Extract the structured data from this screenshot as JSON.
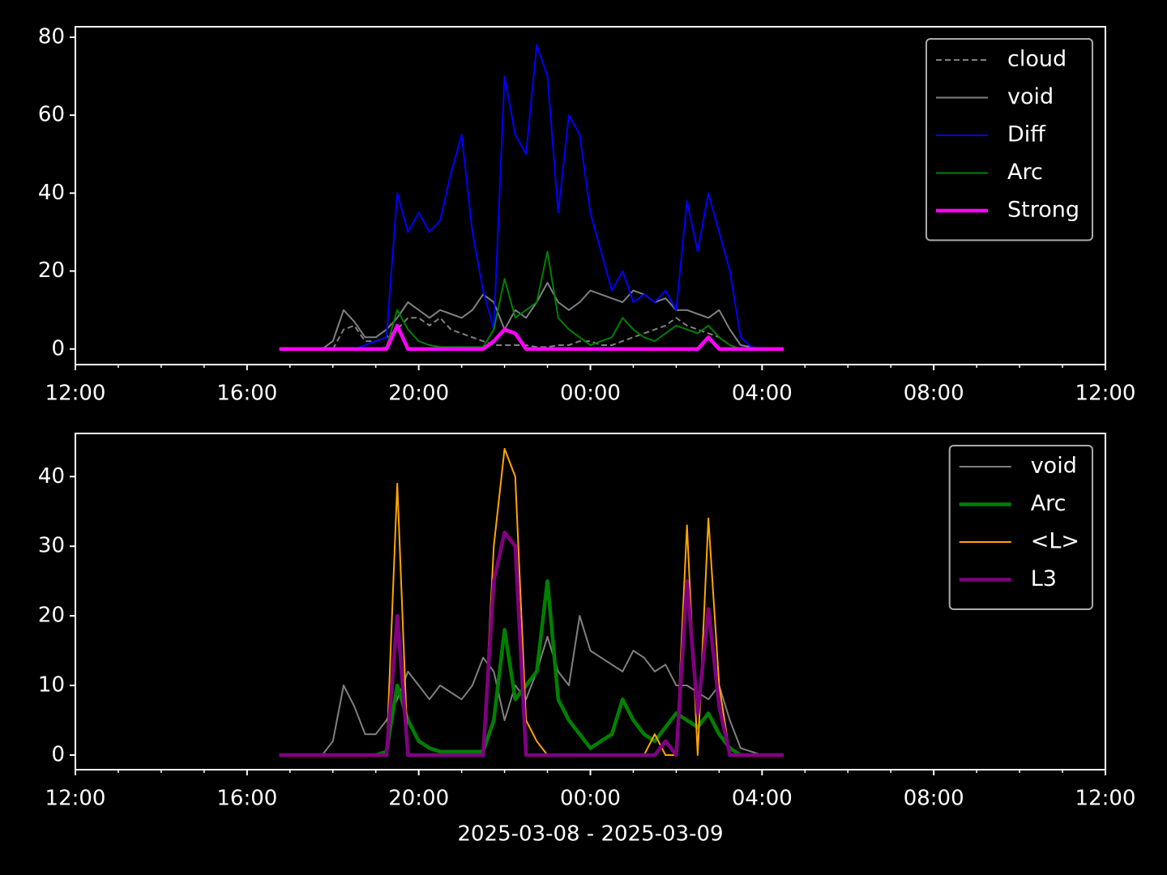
{
  "chart_data": [
    {
      "type": "line",
      "legend": "upper right",
      "xlim": [
        12,
        36
      ],
      "ylim": [
        -4,
        82.7
      ],
      "xticks": [
        {
          "value": 12,
          "label": "12:00"
        },
        {
          "value": 16,
          "label": "16:00"
        },
        {
          "value": 20,
          "label": "20:00"
        },
        {
          "value": 24,
          "label": "00:00"
        },
        {
          "value": 28,
          "label": "04:00"
        },
        {
          "value": 32,
          "label": "08:00"
        },
        {
          "value": 36,
          "label": "12:00"
        }
      ],
      "xminor_ticks": [
        13,
        14,
        15,
        17,
        18,
        19,
        21,
        22,
        23,
        25,
        26,
        27,
        29,
        30,
        31,
        33,
        34,
        35
      ],
      "yticks": [
        0,
        20,
        40,
        60,
        80
      ],
      "x": [
        16.75,
        17,
        17.25,
        17.5,
        17.75,
        18,
        18.25,
        18.5,
        18.75,
        19,
        19.25,
        19.5,
        19.75,
        20,
        20.25,
        20.5,
        20.75,
        21,
        21.25,
        21.5,
        21.75,
        22,
        22.25,
        22.5,
        22.75,
        23,
        23.25,
        23.5,
        23.75,
        24,
        24.25,
        24.5,
        24.75,
        25,
        25.25,
        25.5,
        25.75,
        26,
        26.25,
        26.5,
        26.75,
        27,
        27.25,
        27.5,
        27.75,
        28,
        28.25,
        28.5
      ],
      "series": [
        {
          "name": "cloud",
          "color": "#808080",
          "dash": true,
          "width": 2,
          "values": [
            0,
            0,
            0,
            0,
            0,
            0,
            5,
            6,
            2,
            2,
            3,
            5,
            8,
            8,
            6,
            8,
            5,
            4,
            3,
            2,
            1,
            1,
            1,
            1,
            0.5,
            0.5,
            1,
            1,
            2,
            2,
            1,
            1,
            2,
            3,
            4,
            5,
            6,
            8,
            6,
            5,
            4,
            3,
            1,
            0,
            0,
            0,
            0,
            0
          ]
        },
        {
          "name": "void",
          "color": "#808080",
          "width": 2,
          "values": [
            0,
            0,
            0,
            0,
            0,
            2,
            10,
            7,
            3,
            3,
            5,
            8,
            12,
            10,
            8,
            10,
            9,
            8,
            10,
            14,
            12,
            5,
            10,
            8,
            12,
            17,
            12,
            10,
            12,
            15,
            14,
            13,
            12,
            15,
            14,
            12,
            13,
            10,
            10,
            9,
            8,
            10,
            5,
            1,
            0.5,
            0,
            0,
            0
          ]
        },
        {
          "name": "Diff",
          "color": "#0000ff",
          "width": 2,
          "values": [
            0,
            0,
            0,
            0,
            0,
            0,
            0,
            0,
            1,
            2,
            3,
            40,
            30,
            35,
            30,
            33,
            45,
            55,
            30,
            15,
            5,
            70,
            55,
            50,
            78,
            70,
            35,
            60,
            55,
            35,
            25,
            15,
            20,
            12,
            14,
            12,
            15,
            10,
            38,
            25,
            40,
            30,
            20,
            3,
            0.5,
            0,
            0,
            0
          ]
        },
        {
          "name": "Arc",
          "color": "#008000",
          "width": 2,
          "values": [
            0,
            0,
            0,
            0,
            0,
            0,
            0,
            0,
            0,
            0,
            0.5,
            10,
            5,
            2,
            1,
            0.5,
            0.5,
            0.5,
            0.5,
            0.5,
            5,
            18,
            8,
            10,
            12,
            25,
            8,
            5,
            3,
            1,
            2,
            3,
            8,
            5,
            3,
            2,
            4,
            6,
            5,
            4,
            6,
            3,
            1,
            0,
            0,
            0,
            0,
            0
          ]
        },
        {
          "name": "Strong",
          "color": "#ff00ff",
          "width": 4.5,
          "values": [
            0,
            0,
            0,
            0,
            0,
            0,
            0,
            0,
            0,
            0,
            0,
            6,
            0,
            0,
            0,
            0,
            0,
            0,
            0,
            0,
            2,
            5,
            4,
            0,
            0,
            0,
            0,
            0,
            0,
            0,
            0,
            0,
            0,
            0,
            0,
            0,
            0,
            0,
            0,
            0,
            3,
            0,
            0,
            0,
            0,
            0,
            0,
            0
          ]
        }
      ]
    },
    {
      "type": "line",
      "legend": "upper right",
      "xlabel": "2025-03-08 - 2025-03-09",
      "xlim": [
        12,
        36
      ],
      "ylim": [
        -2.1,
        46.2
      ],
      "xticks": [
        {
          "value": 12,
          "label": "12:00"
        },
        {
          "value": 16,
          "label": "16:00"
        },
        {
          "value": 20,
          "label": "20:00"
        },
        {
          "value": 24,
          "label": "00:00"
        },
        {
          "value": 28,
          "label": "04:00"
        },
        {
          "value": 32,
          "label": "08:00"
        },
        {
          "value": 36,
          "label": "12:00"
        }
      ],
      "xminor_ticks": [
        13,
        14,
        15,
        17,
        18,
        19,
        21,
        22,
        23,
        25,
        26,
        27,
        29,
        30,
        31,
        33,
        34,
        35
      ],
      "yticks": [
        0,
        10,
        20,
        30,
        40
      ],
      "x": [
        16.75,
        17,
        17.25,
        17.5,
        17.75,
        18,
        18.25,
        18.5,
        18.75,
        19,
        19.25,
        19.5,
        19.75,
        20,
        20.25,
        20.5,
        20.75,
        21,
        21.25,
        21.5,
        21.75,
        22,
        22.25,
        22.5,
        22.75,
        23,
        23.25,
        23.5,
        23.75,
        24,
        24.25,
        24.5,
        24.75,
        25,
        25.25,
        25.5,
        25.75,
        26,
        26.25,
        26.5,
        26.75,
        27,
        27.25,
        27.5,
        27.75,
        28,
        28.25,
        28.5
      ],
      "series": [
        {
          "name": "void",
          "color": "#808080",
          "width": 2,
          "values": [
            0,
            0,
            0,
            0,
            0,
            2,
            10,
            7,
            3,
            3,
            5,
            8,
            12,
            10,
            8,
            10,
            9,
            8,
            10,
            14,
            12,
            5,
            10,
            8,
            12,
            17,
            12,
            10,
            20,
            15,
            14,
            13,
            12,
            15,
            14,
            12,
            13,
            10,
            10,
            9,
            8,
            10,
            5,
            1,
            0.5,
            0,
            0,
            0
          ]
        },
        {
          "name": "Arc",
          "color": "#008000",
          "width": 4.5,
          "values": [
            0,
            0,
            0,
            0,
            0,
            0,
            0,
            0,
            0,
            0,
            0.5,
            10,
            5,
            2,
            1,
            0.5,
            0.5,
            0.5,
            0.5,
            0.5,
            5,
            18,
            8,
            10,
            12,
            25,
            8,
            5,
            3,
            1,
            2,
            3,
            8,
            5,
            3,
            2,
            4,
            6,
            5,
            4,
            6,
            3,
            1,
            0,
            0,
            0,
            0,
            0
          ]
        },
        {
          "name": "<L>",
          "color": "#ffa500",
          "width": 2,
          "values": [
            0,
            0,
            0,
            0,
            0,
            0,
            0,
            0,
            0,
            0,
            0,
            39,
            0,
            0,
            0,
            0,
            0,
            0,
            0,
            0,
            30,
            44,
            40,
            5,
            2,
            0,
            0,
            0,
            0,
            0,
            0,
            0,
            0,
            0,
            0,
            3,
            0,
            0,
            33,
            0,
            34,
            10,
            0,
            0,
            0,
            0,
            0,
            0
          ]
        },
        {
          "name": "L3",
          "color": "#800080",
          "width": 4.5,
          "values": [
            0,
            0,
            0,
            0,
            0,
            0,
            0,
            0,
            0,
            0,
            0,
            20,
            0,
            0,
            0,
            0,
            0,
            0,
            0,
            0,
            25,
            32,
            30,
            0,
            0,
            0,
            0,
            0,
            0,
            0,
            0,
            0,
            0,
            0,
            0,
            0,
            2,
            0,
            25,
            6,
            21,
            7,
            0,
            0,
            0,
            0,
            0,
            0
          ]
        }
      ]
    }
  ]
}
